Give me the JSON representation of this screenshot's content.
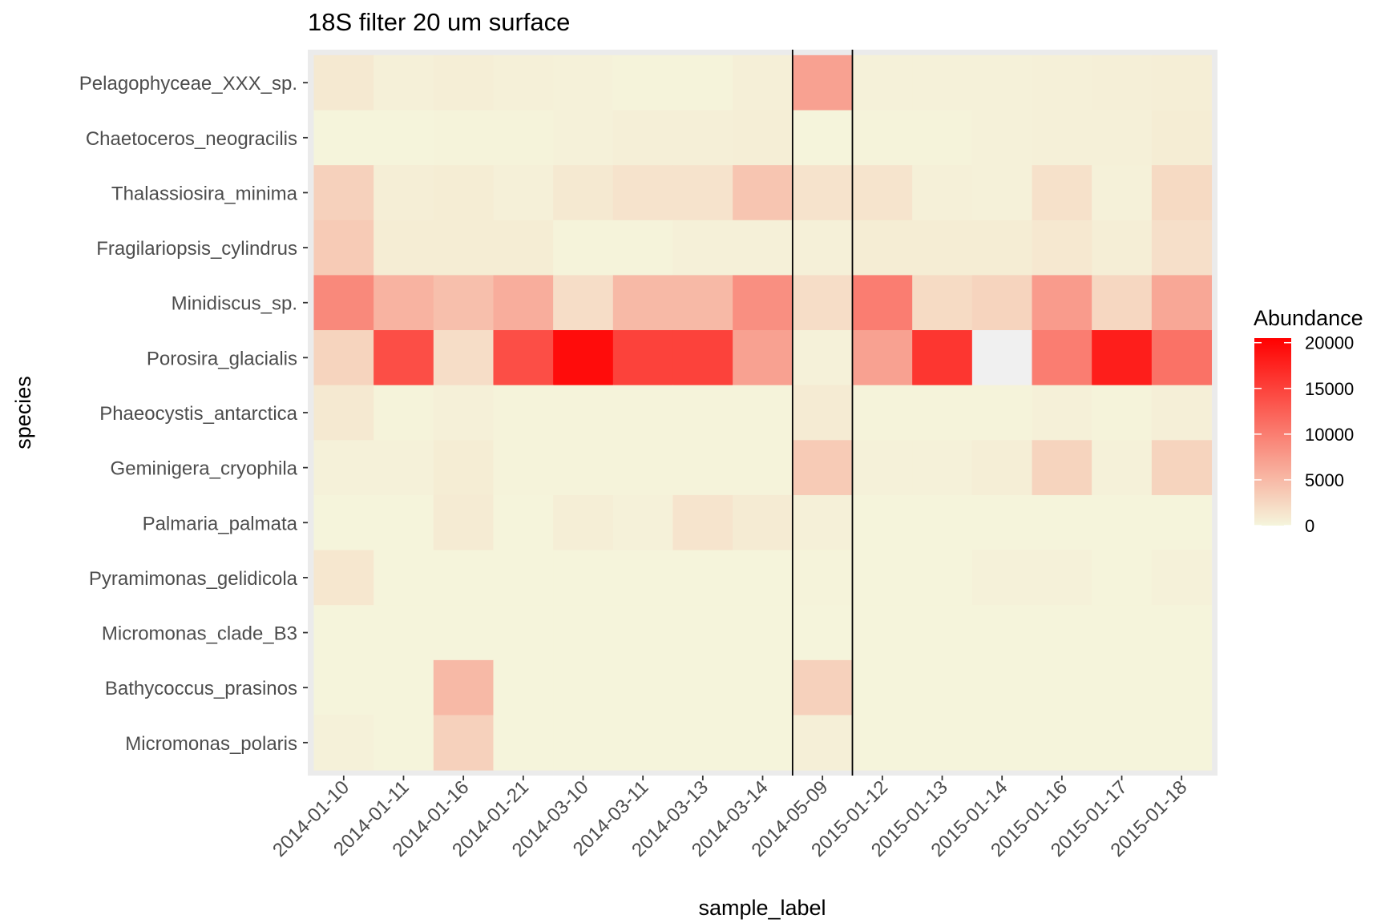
{
  "chart_data": {
    "type": "heatmap",
    "title": "18S filter 20 um surface",
    "xlabel": "sample_label",
    "ylabel": "species",
    "x": [
      "2014-01-10",
      "2014-01-11",
      "2014-01-16",
      "2014-01-21",
      "2014-03-10",
      "2014-03-11",
      "2014-03-13",
      "2014-03-14",
      "2014-05-09",
      "2015-01-12",
      "2015-01-13",
      "2015-01-14",
      "2015-01-16",
      "2015-01-17",
      "2015-01-18"
    ],
    "y": [
      "Pelagophyceae_XXX_sp.",
      "Chaetoceros_neogracilis",
      "Thalassiosira_minima",
      "Fragilariopsis_cylindrus",
      "Minidiscus_sp.",
      "Porosira_glacialis",
      "Phaeocystis_antarctica",
      "Geminigera_cryophila",
      "Palmaria_palmata",
      "Pyramimonas_gelidicola",
      "Micromonas_clade_B3",
      "Bathycoccus_prasinos",
      "Micromonas_polaris"
    ],
    "values": [
      [
        1000,
        400,
        600,
        400,
        300,
        200,
        200,
        500,
        7000,
        300,
        300,
        300,
        400,
        500,
        600
      ],
      [
        100,
        100,
        200,
        200,
        300,
        500,
        500,
        600,
        100,
        200,
        200,
        300,
        400,
        400,
        700
      ],
      [
        3000,
        600,
        700,
        400,
        1000,
        1500,
        1500,
        4000,
        1500,
        1400,
        400,
        300,
        1700,
        300,
        2300
      ],
      [
        3500,
        700,
        700,
        700,
        200,
        200,
        400,
        400,
        400,
        700,
        700,
        700,
        1100,
        600,
        1800
      ],
      [
        9000,
        5500,
        4500,
        6000,
        2000,
        5000,
        5000,
        8500,
        2000,
        10000,
        2200,
        2800,
        7500,
        2500,
        6500
      ],
      [
        2800,
        14000,
        2000,
        14000,
        19500,
        15000,
        15000,
        7000,
        300,
        7000,
        16000,
        null,
        10000,
        18000,
        11000
      ],
      [
        1000,
        200,
        400,
        200,
        200,
        200,
        200,
        200,
        800,
        200,
        200,
        200,
        400,
        200,
        500
      ],
      [
        300,
        300,
        700,
        200,
        200,
        200,
        200,
        200,
        3500,
        300,
        300,
        600,
        2800,
        300,
        2800
      ],
      [
        100,
        100,
        800,
        100,
        600,
        300,
        1400,
        800,
        400,
        100,
        100,
        100,
        100,
        100,
        100
      ],
      [
        1200,
        100,
        100,
        100,
        100,
        100,
        100,
        100,
        200,
        100,
        100,
        300,
        300,
        100,
        300
      ],
      [
        100,
        100,
        100,
        100,
        100,
        100,
        100,
        100,
        100,
        100,
        100,
        100,
        100,
        100,
        100
      ],
      [
        100,
        100,
        5000,
        100,
        100,
        100,
        100,
        100,
        3000,
        100,
        100,
        100,
        100,
        100,
        100
      ],
      [
        300,
        100,
        3000,
        100,
        100,
        100,
        100,
        100,
        500,
        100,
        100,
        100,
        100,
        100,
        100
      ]
    ],
    "missing_color": "#F0F0F0",
    "color_scale": {
      "low": "#F5F5DC",
      "high": "#FF0000",
      "min": 0,
      "max": 20500
    },
    "legend": {
      "title": "Abundance",
      "ticks": [
        0,
        5000,
        10000,
        15000,
        20000
      ],
      "position": "right"
    },
    "vertical_lines_between": [
      "2014-03-14",
      "2014-05-09",
      "2015-01-12"
    ],
    "panel_background": "#EBEBEB",
    "grid": false
  }
}
